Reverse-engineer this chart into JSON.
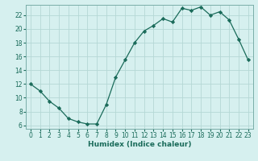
{
  "x": [
    0,
    1,
    2,
    3,
    4,
    5,
    6,
    7,
    8,
    9,
    10,
    11,
    12,
    13,
    14,
    15,
    16,
    17,
    18,
    19,
    20,
    21,
    22,
    23
  ],
  "y": [
    12.0,
    11.0,
    9.5,
    8.5,
    7.0,
    6.5,
    6.2,
    6.2,
    9.0,
    13.0,
    15.5,
    18.0,
    19.7,
    20.5,
    21.5,
    21.0,
    23.0,
    22.7,
    23.2,
    22.0,
    22.5,
    21.3,
    18.5,
    15.5
  ],
  "line_color": "#1a6b5a",
  "marker_color": "#1a6b5a",
  "bg_color": "#d6f0ef",
  "grid_color": "#b5d8d5",
  "xlabel": "Humidex (Indice chaleur)",
  "xlim": [
    -0.5,
    23.5
  ],
  "ylim": [
    5.5,
    23.5
  ],
  "yticks": [
    6,
    8,
    10,
    12,
    14,
    16,
    18,
    20,
    22
  ],
  "xticks": [
    0,
    1,
    2,
    3,
    4,
    5,
    6,
    7,
    8,
    9,
    10,
    11,
    12,
    13,
    14,
    15,
    16,
    17,
    18,
    19,
    20,
    21,
    22,
    23
  ],
  "label_fontsize": 6.5,
  "tick_fontsize": 5.5
}
